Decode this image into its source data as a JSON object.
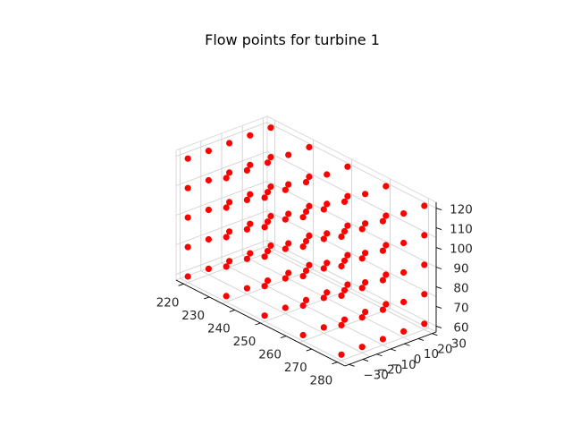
{
  "chart_data": {
    "type": "scatter",
    "projection": "3d",
    "title": "Flow points for turbine 1",
    "xlabel": "",
    "ylabel": "",
    "zlabel": "",
    "marker_color": "#ff0000",
    "grid": true,
    "pane_colors": {
      "xz": "#f2f2f2",
      "yz": "#ebebeb",
      "floor": "#f7f7f7"
    },
    "xlim": [
      217,
      283
    ],
    "ylim": [
      -33,
      33
    ],
    "zlim": [
      57,
      123
    ],
    "x_ticks": [
      "220",
      "230",
      "240",
      "250",
      "260",
      "270",
      "280"
    ],
    "y_ticks": [
      "−30",
      "−20",
      "−10",
      "0",
      "10",
      "20",
      "30"
    ],
    "z_ticks": [
      "60",
      "70",
      "80",
      "90",
      "100",
      "110",
      "120"
    ],
    "x_tick_values": [
      220,
      230,
      240,
      250,
      260,
      270,
      280
    ],
    "y_tick_values": [
      -30,
      -20,
      -10,
      0,
      10,
      20,
      30
    ],
    "z_tick_values": [
      60,
      70,
      80,
      90,
      100,
      110,
      120
    ],
    "grid_values": {
      "x": [
        220,
        235,
        250,
        265,
        280
      ],
      "y": [
        -30,
        -15,
        0,
        15,
        30
      ],
      "z": [
        60,
        75,
        90,
        105,
        120
      ]
    },
    "series": [
      {
        "marker": "o",
        "color": "#ff0000"
      }
    ]
  }
}
